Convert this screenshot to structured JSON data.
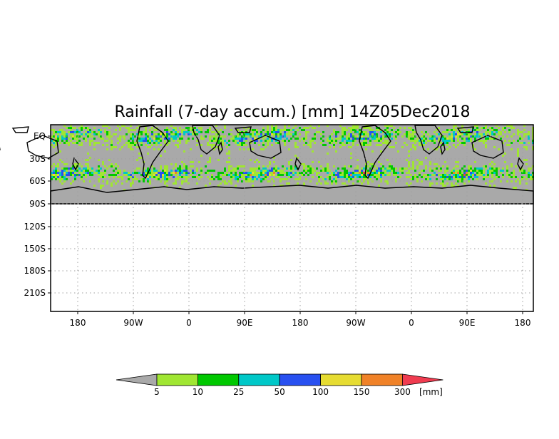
{
  "title": "Rainfall (7-day accum.) [mm] 14Z05Dec2018",
  "lat_labels": [
    "EQ",
    "30S",
    "60S",
    "90S",
    "120S",
    "150S",
    "180S",
    "210S"
  ],
  "lon_labels": [
    "180",
    "90W",
    "0",
    "90E",
    "180",
    "90W",
    "0",
    "90E",
    "180"
  ],
  "colorbar": {
    "unit": "[mm]",
    "levels": [
      "5",
      "10",
      "25",
      "50",
      "100",
      "150",
      "300"
    ],
    "colors": [
      "#a9a9a9",
      "#a0e632",
      "#00c800",
      "#00c8c8",
      "#2850f0",
      "#e6dc32",
      "#f08228",
      "#f03c50"
    ]
  },
  "colors": {
    "no_rain": "#a9a9a9",
    "coast": "#000000",
    "grid": "#a0a0a0"
  }
}
